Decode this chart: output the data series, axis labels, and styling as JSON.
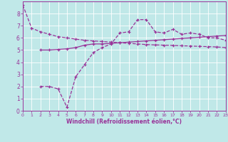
{
  "xlabel": "Windchill (Refroidissement éolien,°C)",
  "xlim": [
    0,
    23
  ],
  "ylim": [
    0,
    9
  ],
  "xticks": [
    0,
    1,
    2,
    3,
    4,
    5,
    6,
    7,
    8,
    9,
    10,
    11,
    12,
    13,
    14,
    15,
    16,
    17,
    18,
    19,
    20,
    21,
    22,
    23
  ],
  "yticks": [
    0,
    1,
    2,
    3,
    4,
    5,
    6,
    7,
    8
  ],
  "background_color": "#c0e8e8",
  "line_color": "#993399",
  "line1_x": [
    0,
    1,
    2,
    3,
    4,
    5,
    6,
    7,
    8,
    9,
    10,
    11,
    12,
    13,
    14,
    15,
    16,
    17,
    18,
    19,
    20,
    21,
    22,
    23
  ],
  "line1_y": [
    8.7,
    6.8,
    6.5,
    6.3,
    6.1,
    6.0,
    5.9,
    5.8,
    5.75,
    5.7,
    5.65,
    5.6,
    5.55,
    5.5,
    5.45,
    5.42,
    5.4,
    5.38,
    5.35,
    5.33,
    5.3,
    5.28,
    5.25,
    5.2
  ],
  "line2_x": [
    2,
    3,
    4,
    5,
    6,
    7,
    8,
    9,
    10,
    11,
    12,
    13,
    14,
    15,
    16,
    17,
    18,
    19,
    20,
    21,
    22,
    23
  ],
  "line2_y": [
    5.0,
    5.0,
    5.05,
    5.1,
    5.2,
    5.4,
    5.5,
    5.5,
    5.55,
    5.6,
    5.65,
    5.7,
    5.75,
    5.8,
    5.85,
    5.9,
    5.95,
    6.0,
    6.05,
    6.1,
    6.15,
    6.2
  ],
  "line3_x": [
    2,
    3,
    4,
    5,
    6,
    7,
    8,
    9,
    10,
    11,
    12,
    13,
    14,
    15,
    16,
    17,
    18,
    19,
    20,
    21,
    22,
    23
  ],
  "line3_y": [
    2.0,
    2.0,
    1.8,
    0.3,
    2.8,
    3.8,
    4.8,
    5.2,
    5.5,
    6.4,
    6.5,
    7.5,
    7.5,
    6.5,
    6.4,
    6.7,
    6.3,
    6.4,
    6.3,
    6.0,
    6.0,
    5.8
  ]
}
